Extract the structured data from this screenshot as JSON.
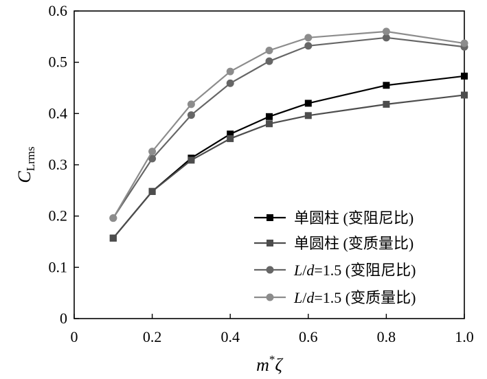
{
  "chart_data": {
    "type": "line",
    "xlabel": "m*ζ",
    "ylabel": "CLrms",
    "xlabel_parts": {
      "base": "m",
      "sup": "*",
      "tail": "ζ"
    },
    "ylabel_parts": {
      "base": "C",
      "sub": "Lrms"
    },
    "xlim": [
      0,
      1.0
    ],
    "ylim": [
      0,
      0.6
    ],
    "x_ticks": [
      0,
      0.2,
      0.4,
      0.6,
      0.8,
      1.0
    ],
    "x_tick_labels": [
      "0",
      "0.2",
      "0.4",
      "0.6",
      "0.8",
      "1.0"
    ],
    "y_ticks": [
      0,
      0.1,
      0.2,
      0.3,
      0.4,
      0.5,
      0.6
    ],
    "y_tick_labels": [
      "0",
      "0.1",
      "0.2",
      "0.3",
      "0.4",
      "0.5",
      "0.6"
    ],
    "grid": false,
    "legend_position": "bottom-right",
    "x": [
      0.1,
      0.2,
      0.3,
      0.4,
      0.5,
      0.6,
      0.8,
      1.0
    ],
    "series": [
      {
        "name": "单圆柱 (变阻尼比)",
        "name_parts": {
          "prefix": "单圆柱",
          "suffix": " (变阻尼比)",
          "italic1": "",
          "mid": "",
          "italic2": ""
        },
        "marker": "square",
        "color": "#000000",
        "values": [
          0.157,
          0.248,
          0.313,
          0.36,
          0.394,
          0.42,
          0.455,
          0.473
        ]
      },
      {
        "name": "单圆柱 (变质量比)",
        "name_parts": {
          "prefix": "单圆柱",
          "suffix": " (变质量比)",
          "italic1": "",
          "mid": "",
          "italic2": ""
        },
        "marker": "square",
        "color": "#4d4d4d",
        "values": [
          0.157,
          0.248,
          0.309,
          0.351,
          0.38,
          0.396,
          0.418,
          0.436
        ]
      },
      {
        "name": "L/d=1.5 (变阻尼比)",
        "name_parts": {
          "prefix": "",
          "italic1": "L",
          "mid": "/",
          "italic2": "d",
          "suffix": "=1.5 (变阻尼比)"
        },
        "marker": "circle",
        "color": "#666666",
        "values": [
          0.196,
          0.312,
          0.397,
          0.459,
          0.502,
          0.532,
          0.548,
          0.53
        ]
      },
      {
        "name": "L/d=1.5 (变质量比)",
        "name_parts": {
          "prefix": "",
          "italic1": "L",
          "mid": "/",
          "italic2": "d",
          "suffix": "=1.5 (变质量比)"
        },
        "marker": "circle",
        "color": "#8c8c8c",
        "values": [
          0.196,
          0.326,
          0.418,
          0.482,
          0.523,
          0.548,
          0.56,
          0.537
        ]
      }
    ]
  }
}
